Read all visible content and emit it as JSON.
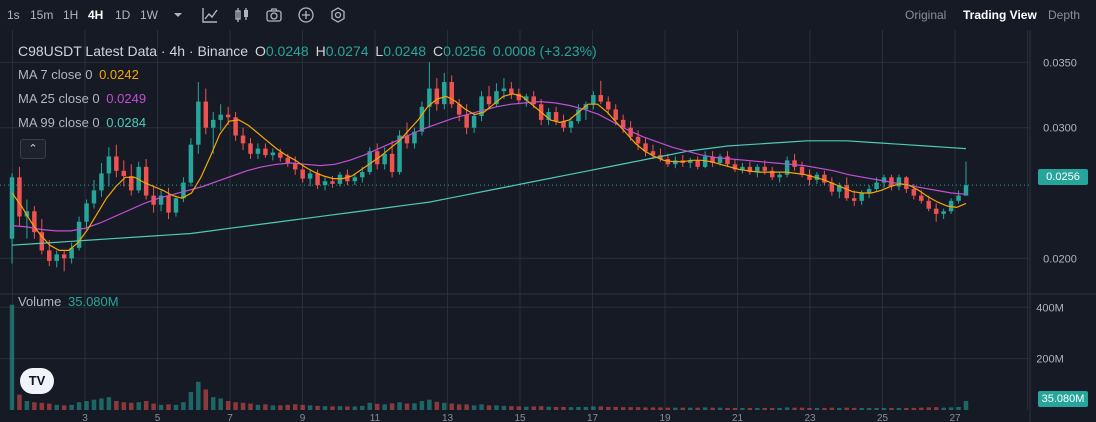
{
  "toolbar": {
    "intervals": [
      "1s",
      "15m",
      "1H",
      "4H",
      "1D",
      "1W"
    ],
    "active_interval": "4H",
    "tools": [
      "chevron-down-icon",
      "indicators-icon",
      "candles-icon",
      "camera-icon",
      "plus-circle-icon",
      "settings-icon"
    ],
    "views": [
      "Original",
      "Trading View",
      "Depth"
    ],
    "active_view": "Trading View"
  },
  "legend": {
    "symbol": "C98USDT Latest Data · 4h · Binance",
    "open_label": "O",
    "open": "0.0248",
    "high_label": "H",
    "high": "0.0274",
    "low_label": "L",
    "low": "0.0248",
    "close_label": "C",
    "close": "0.0256",
    "change": "0.0008 (+3.23%)",
    "ma7_label": "MA 7 close 0",
    "ma7_value": "0.0242",
    "ma25_label": "MA 25 close 0",
    "ma25_value": "0.0249",
    "ma99_label": "MA 99 close 0",
    "ma99_value": "0.0284",
    "volume_label": "Volume",
    "volume_value": "35.080M"
  },
  "collapse_glyph": "⌃",
  "logo_text": "TV",
  "colors": {
    "up": "#26a69a",
    "down": "#ef5350",
    "ma7": "#f7a600",
    "ma25": "#c34fd4",
    "ma99": "#4fc9b7",
    "background": "#161a25",
    "grid": "#2a2e39"
  },
  "chart_data": {
    "type": "candlestick",
    "price_axis": {
      "ticks": [
        "0.0350",
        "0.0300",
        "0.0200"
      ],
      "range": [
        0.0178,
        0.0371
      ]
    },
    "last_price": "0.0256",
    "volume_axis": {
      "ticks": [
        "400M",
        "200M"
      ],
      "range": [
        0,
        440
      ]
    },
    "last_volume": "35.080M",
    "x_labels": [
      "3",
      "5",
      "7",
      "9",
      "11",
      "13",
      "15",
      "17",
      "19",
      "21",
      "23",
      "25",
      "27"
    ],
    "candles": [
      [
        0.0215,
        0.0265,
        0.0196,
        0.0262,
        410
      ],
      [
        0.0262,
        0.027,
        0.0225,
        0.0232,
        60
      ],
      [
        0.0232,
        0.0245,
        0.0215,
        0.0236,
        35
      ],
      [
        0.0236,
        0.024,
        0.0215,
        0.022,
        30
      ],
      [
        0.022,
        0.023,
        0.0203,
        0.0206,
        28
      ],
      [
        0.0206,
        0.0214,
        0.0194,
        0.0198,
        25
      ],
      [
        0.0198,
        0.0206,
        0.0193,
        0.0203,
        20
      ],
      [
        0.0203,
        0.0206,
        0.019,
        0.02,
        18
      ],
      [
        0.02,
        0.0212,
        0.0196,
        0.0208,
        20
      ],
      [
        0.0208,
        0.0232,
        0.0206,
        0.0228,
        30
      ],
      [
        0.0228,
        0.0245,
        0.0222,
        0.0242,
        35
      ],
      [
        0.0242,
        0.026,
        0.0238,
        0.0252,
        40
      ],
      [
        0.0252,
        0.0273,
        0.0247,
        0.0265,
        45
      ],
      [
        0.0265,
        0.0285,
        0.0255,
        0.0278,
        50
      ],
      [
        0.0278,
        0.0287,
        0.0262,
        0.0267,
        35
      ],
      [
        0.0267,
        0.0275,
        0.0255,
        0.0263,
        30
      ],
      [
        0.0263,
        0.0272,
        0.0248,
        0.0252,
        28
      ],
      [
        0.0252,
        0.0274,
        0.025,
        0.027,
        30
      ],
      [
        0.027,
        0.0276,
        0.0245,
        0.0248,
        35
      ],
      [
        0.0248,
        0.0256,
        0.0235,
        0.0241,
        25
      ],
      [
        0.0241,
        0.0252,
        0.0236,
        0.0248,
        20
      ],
      [
        0.0248,
        0.0254,
        0.023,
        0.0235,
        22
      ],
      [
        0.0235,
        0.0248,
        0.0232,
        0.0246,
        20
      ],
      [
        0.0246,
        0.0262,
        0.0243,
        0.0258,
        30
      ],
      [
        0.0258,
        0.0292,
        0.0255,
        0.0287,
        70
      ],
      [
        0.0287,
        0.0335,
        0.028,
        0.032,
        110
      ],
      [
        0.032,
        0.033,
        0.0295,
        0.03,
        80
      ],
      [
        0.03,
        0.0312,
        0.028,
        0.0306,
        50
      ],
      [
        0.0306,
        0.0318,
        0.0298,
        0.031,
        45
      ],
      [
        0.031,
        0.0316,
        0.0302,
        0.0308,
        35
      ],
      [
        0.0308,
        0.0312,
        0.029,
        0.0294,
        30
      ],
      [
        0.0294,
        0.03,
        0.0283,
        0.0288,
        28
      ],
      [
        0.0288,
        0.0292,
        0.0276,
        0.028,
        25
      ],
      [
        0.028,
        0.0288,
        0.0276,
        0.0284,
        20
      ],
      [
        0.0284,
        0.0288,
        0.0277,
        0.0279,
        22
      ],
      [
        0.0279,
        0.0284,
        0.0275,
        0.0281,
        18
      ],
      [
        0.0281,
        0.0284,
        0.0274,
        0.0277,
        18
      ],
      [
        0.0277,
        0.028,
        0.027,
        0.0273,
        20
      ],
      [
        0.0273,
        0.0278,
        0.0264,
        0.0268,
        22
      ],
      [
        0.0268,
        0.0272,
        0.0258,
        0.0261,
        20
      ],
      [
        0.0261,
        0.0268,
        0.0255,
        0.0265,
        18
      ],
      [
        0.0265,
        0.0268,
        0.0253,
        0.0256,
        16
      ],
      [
        0.0256,
        0.0262,
        0.0252,
        0.0259,
        15
      ],
      [
        0.0259,
        0.0263,
        0.0254,
        0.0257,
        14
      ],
      [
        0.0257,
        0.0266,
        0.0255,
        0.0264,
        15
      ],
      [
        0.0264,
        0.0268,
        0.0256,
        0.0259,
        14
      ],
      [
        0.0259,
        0.0265,
        0.0256,
        0.0262,
        14
      ],
      [
        0.0262,
        0.027,
        0.0258,
        0.0266,
        16
      ],
      [
        0.0266,
        0.0285,
        0.0264,
        0.0282,
        28
      ],
      [
        0.0282,
        0.0288,
        0.0268,
        0.0272,
        24
      ],
      [
        0.0272,
        0.0285,
        0.0268,
        0.028,
        22
      ],
      [
        0.028,
        0.029,
        0.0262,
        0.0266,
        26
      ],
      [
        0.0266,
        0.0298,
        0.0264,
        0.0294,
        30
      ],
      [
        0.0294,
        0.0304,
        0.0284,
        0.0288,
        25
      ],
      [
        0.0288,
        0.03,
        0.0284,
        0.0297,
        26
      ],
      [
        0.0297,
        0.032,
        0.0294,
        0.0316,
        35
      ],
      [
        0.0316,
        0.035,
        0.03,
        0.033,
        40
      ],
      [
        0.033,
        0.0338,
        0.0313,
        0.0318,
        32
      ],
      [
        0.0318,
        0.0342,
        0.0314,
        0.0335,
        28
      ],
      [
        0.0335,
        0.034,
        0.0315,
        0.0318,
        25
      ],
      [
        0.0318,
        0.0322,
        0.0305,
        0.031,
        22
      ],
      [
        0.031,
        0.0318,
        0.0295,
        0.03,
        22
      ],
      [
        0.03,
        0.0312,
        0.0296,
        0.0309,
        18
      ],
      [
        0.0309,
        0.0328,
        0.0305,
        0.0324,
        22
      ],
      [
        0.0324,
        0.0332,
        0.0314,
        0.0318,
        18
      ],
      [
        0.0318,
        0.0334,
        0.0316,
        0.0328,
        18
      ],
      [
        0.0328,
        0.0338,
        0.0322,
        0.033,
        16
      ],
      [
        0.033,
        0.0335,
        0.0322,
        0.0326,
        15
      ],
      [
        0.0326,
        0.033,
        0.0318,
        0.0321,
        14
      ],
      [
        0.0321,
        0.0326,
        0.0316,
        0.0324,
        13
      ],
      [
        0.0324,
        0.0328,
        0.0315,
        0.0318,
        14
      ],
      [
        0.0318,
        0.0322,
        0.0302,
        0.0306,
        15
      ],
      [
        0.0306,
        0.0315,
        0.0302,
        0.0312,
        13
      ],
      [
        0.0312,
        0.0316,
        0.0302,
        0.0305,
        12
      ],
      [
        0.0305,
        0.031,
        0.0297,
        0.03,
        12
      ],
      [
        0.03,
        0.0308,
        0.0296,
        0.0305,
        11
      ],
      [
        0.0305,
        0.0318,
        0.0303,
        0.0314,
        12
      ],
      [
        0.0314,
        0.032,
        0.0306,
        0.0318,
        12
      ],
      [
        0.0318,
        0.0328,
        0.0314,
        0.0325,
        14
      ],
      [
        0.0325,
        0.0336,
        0.0318,
        0.032,
        14
      ],
      [
        0.032,
        0.0324,
        0.031,
        0.0314,
        12
      ],
      [
        0.0314,
        0.0318,
        0.0302,
        0.0306,
        12
      ],
      [
        0.0306,
        0.031,
        0.0296,
        0.03,
        11
      ],
      [
        0.03,
        0.0305,
        0.029,
        0.0293,
        11
      ],
      [
        0.0293,
        0.0298,
        0.0283,
        0.0288,
        11
      ],
      [
        0.0288,
        0.0292,
        0.0278,
        0.0282,
        10
      ],
      [
        0.0282,
        0.0287,
        0.0276,
        0.0279,
        10
      ],
      [
        0.0279,
        0.0284,
        0.0274,
        0.0276,
        10
      ],
      [
        0.0276,
        0.028,
        0.027,
        0.0272,
        9
      ],
      [
        0.0272,
        0.0278,
        0.0269,
        0.0275,
        9
      ],
      [
        0.0275,
        0.0279,
        0.027,
        0.0273,
        9
      ],
      [
        0.0273,
        0.0277,
        0.0269,
        0.0275,
        9
      ],
      [
        0.0275,
        0.0278,
        0.0268,
        0.027,
        9
      ],
      [
        0.027,
        0.0282,
        0.0269,
        0.0278,
        10
      ],
      [
        0.0278,
        0.0282,
        0.027,
        0.0273,
        9
      ],
      [
        0.0273,
        0.028,
        0.0271,
        0.0278,
        9
      ],
      [
        0.0278,
        0.0282,
        0.027,
        0.0272,
        8
      ],
      [
        0.0272,
        0.0276,
        0.0266,
        0.0268,
        8
      ],
      [
        0.0268,
        0.0273,
        0.0265,
        0.027,
        8
      ],
      [
        0.027,
        0.0274,
        0.0264,
        0.0266,
        8
      ],
      [
        0.0266,
        0.0272,
        0.0262,
        0.027,
        8
      ],
      [
        0.027,
        0.0275,
        0.0264,
        0.0267,
        8
      ],
      [
        0.0267,
        0.027,
        0.026,
        0.0262,
        8
      ],
      [
        0.0262,
        0.0266,
        0.0258,
        0.0264,
        8
      ],
      [
        0.0264,
        0.0278,
        0.0262,
        0.0275,
        10
      ],
      [
        0.0275,
        0.028,
        0.0267,
        0.027,
        9
      ],
      [
        0.027,
        0.0274,
        0.0262,
        0.0264,
        9
      ],
      [
        0.0264,
        0.0268,
        0.0256,
        0.026,
        8
      ],
      [
        0.026,
        0.0266,
        0.0257,
        0.0264,
        8
      ],
      [
        0.0264,
        0.0267,
        0.0256,
        0.0258,
        8
      ],
      [
        0.0258,
        0.0262,
        0.0248,
        0.0251,
        9
      ],
      [
        0.0251,
        0.0258,
        0.0246,
        0.0256,
        8
      ],
      [
        0.0256,
        0.0262,
        0.0244,
        0.0246,
        9
      ],
      [
        0.0246,
        0.0252,
        0.024,
        0.0244,
        8
      ],
      [
        0.0244,
        0.0252,
        0.0241,
        0.025,
        8
      ],
      [
        0.025,
        0.0256,
        0.0246,
        0.0253,
        8
      ],
      [
        0.0253,
        0.0262,
        0.0251,
        0.0258,
        8
      ],
      [
        0.0258,
        0.0264,
        0.0254,
        0.0262,
        8
      ],
      [
        0.0262,
        0.0264,
        0.0252,
        0.0255,
        8
      ],
      [
        0.0255,
        0.0264,
        0.0252,
        0.0262,
        8
      ],
      [
        0.0262,
        0.0263,
        0.025,
        0.0253,
        8
      ],
      [
        0.0253,
        0.0257,
        0.0245,
        0.0248,
        8
      ],
      [
        0.0248,
        0.0252,
        0.0242,
        0.0244,
        9
      ],
      [
        0.0244,
        0.0248,
        0.0236,
        0.0238,
        10
      ],
      [
        0.0238,
        0.0242,
        0.0228,
        0.0234,
        11
      ],
      [
        0.0234,
        0.0238,
        0.023,
        0.0236,
        9
      ],
      [
        0.0236,
        0.0246,
        0.0234,
        0.0244,
        10
      ],
      [
        0.0244,
        0.0252,
        0.0242,
        0.0248,
        12
      ],
      [
        0.0248,
        0.0274,
        0.0248,
        0.0256,
        35
      ]
    ],
    "ma7": [
      0.025,
      0.024,
      0.0228,
      0.0218,
      0.021,
      0.0206,
      0.0206,
      0.0212,
      0.0222,
      0.0234,
      0.0246,
      0.0255,
      0.0262,
      0.0262,
      0.0258,
      0.0255,
      0.0252,
      0.0248,
      0.0246,
      0.025,
      0.0262,
      0.0278,
      0.0295,
      0.0305,
      0.0306,
      0.0302,
      0.0296,
      0.029,
      0.0284,
      0.0279,
      0.0275,
      0.027,
      0.0266,
      0.0263,
      0.0261,
      0.0261,
      0.0263,
      0.0268,
      0.0273,
      0.0278,
      0.0284,
      0.029,
      0.0298,
      0.0306,
      0.0316,
      0.0322,
      0.0324,
      0.032,
      0.0314,
      0.031,
      0.0312,
      0.0318,
      0.0324,
      0.0326,
      0.0324,
      0.0318,
      0.0312,
      0.0306,
      0.0304,
      0.0306,
      0.0312,
      0.0318,
      0.0318,
      0.0312,
      0.0304,
      0.0296,
      0.0288,
      0.0282,
      0.0278,
      0.0275,
      0.0274,
      0.0274,
      0.0275,
      0.0275,
      0.0274,
      0.0272,
      0.027,
      0.0268,
      0.0267,
      0.0266,
      0.0266,
      0.0266,
      0.0266,
      0.0265,
      0.0264,
      0.0262,
      0.026,
      0.0257,
      0.0254,
      0.0251,
      0.025,
      0.025,
      0.0252,
      0.0255,
      0.0257,
      0.0256,
      0.0252,
      0.0247,
      0.0243,
      0.024,
      0.0239,
      0.0242
    ],
    "ma25": [
      0.0225,
      0.0224,
      0.0222,
      0.0221,
      0.0221,
      0.0223,
      0.0227,
      0.0232,
      0.0237,
      0.0242,
      0.0246,
      0.0249,
      0.0252,
      0.0255,
      0.0259,
      0.0263,
      0.0267,
      0.027,
      0.0272,
      0.0273,
      0.0272,
      0.0271,
      0.0272,
      0.0275,
      0.0279,
      0.0284,
      0.0289,
      0.0294,
      0.0299,
      0.0303,
      0.0307,
      0.031,
      0.0313,
      0.0316,
      0.0318,
      0.0319,
      0.032,
      0.0319,
      0.0317,
      0.0314,
      0.031,
      0.0304,
      0.0298,
      0.0293,
      0.0289,
      0.0285,
      0.0282,
      0.0279,
      0.0277,
      0.0276,
      0.0275,
      0.0274,
      0.0273,
      0.0272,
      0.0271,
      0.0269,
      0.0267,
      0.0264,
      0.0262,
      0.026,
      0.0258,
      0.0256,
      0.0254,
      0.0252,
      0.025,
      0.0249
    ],
    "ma99": [
      0.021,
      0.0211,
      0.0212,
      0.0213,
      0.0214,
      0.0215,
      0.0216,
      0.0217,
      0.0218,
      0.0219,
      0.0221,
      0.0223,
      0.0225,
      0.0227,
      0.0229,
      0.0231,
      0.0233,
      0.0235,
      0.0237,
      0.0239,
      0.0241,
      0.0243,
      0.0246,
      0.0249,
      0.0252,
      0.0255,
      0.0258,
      0.0261,
      0.0264,
      0.0267,
      0.027,
      0.0273,
      0.0276,
      0.0279,
      0.0282,
      0.0284,
      0.0286,
      0.0287,
      0.0288,
      0.0289,
      0.029,
      0.029,
      0.029,
      0.0289,
      0.0288,
      0.0287,
      0.0286,
      0.0285,
      0.0284
    ]
  }
}
